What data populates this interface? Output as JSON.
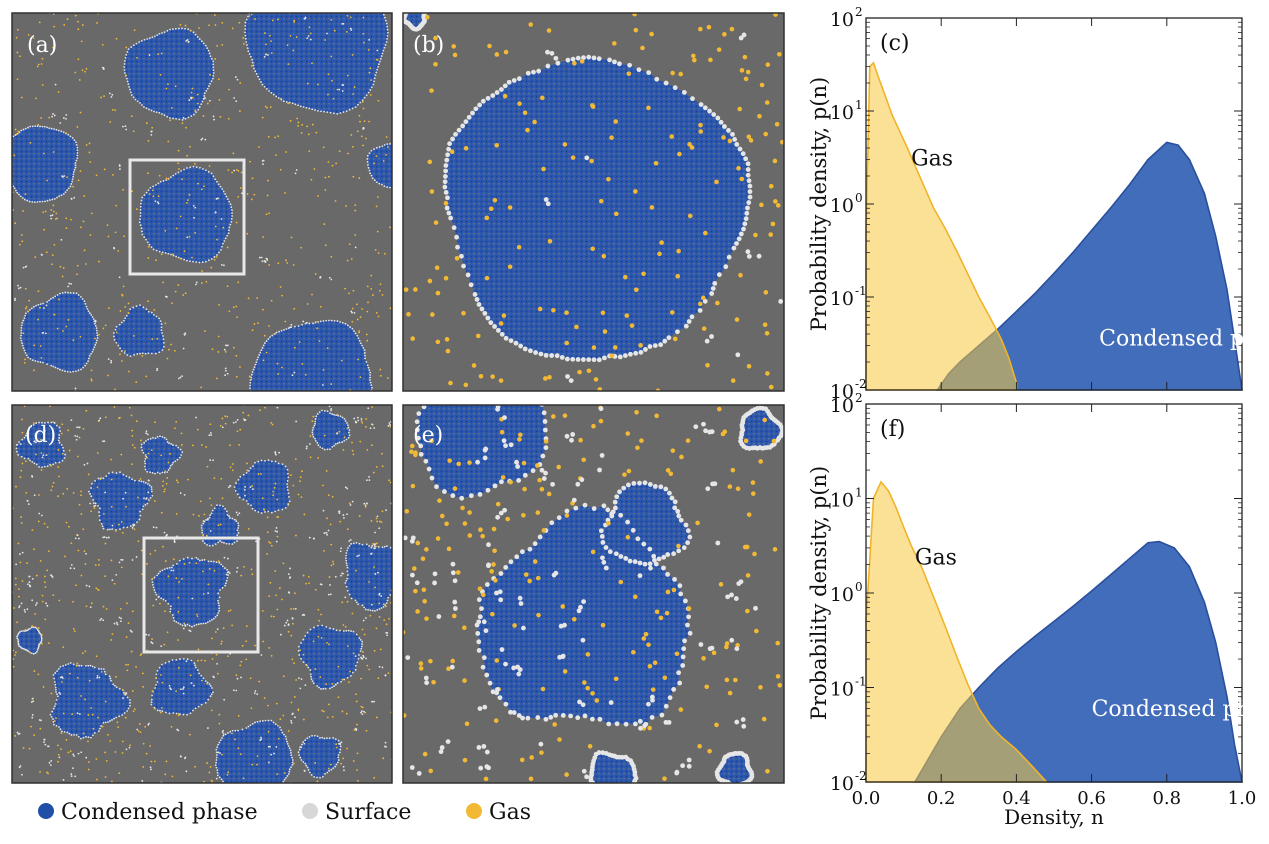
{
  "legend": {
    "items": [
      {
        "label": "Condensed phase",
        "color": "#1f4fa6"
      },
      {
        "label": "Surface",
        "color": "#d7d7d7"
      },
      {
        "label": "Gas",
        "color": "#f2b935"
      }
    ]
  },
  "snapshots": [
    {
      "label": "(a)"
    },
    {
      "label": "(b)"
    },
    {
      "label": "(d)"
    },
    {
      "label": "(e)"
    }
  ],
  "colors": {
    "background": "#696969",
    "condensed": "#2d58b0",
    "condensed_dot": "#1c3f8c",
    "surface": "#e6e6e6",
    "gas": "#f2b935",
    "frame": "#303030",
    "box": "#e8e8e8"
  },
  "chart_data": [
    {
      "type": "area",
      "panel_label": "(c)",
      "xlabel": "",
      "ylabel": "Probability density, p(n)",
      "xlim": [
        0,
        1
      ],
      "ylim": [
        0.01,
        100
      ],
      "y_scale": "log",
      "yticks": [
        "10",
        "10",
        "10",
        "10",
        "10"
      ],
      "ytick_exponents": [
        "-2",
        "-1",
        "0",
        "1",
        "2"
      ],
      "annotations": [
        {
          "text": "Gas",
          "x": 0.12,
          "y": 2.6
        },
        {
          "text": "Condensed phase",
          "x": 0.62,
          "y": 0.03
        }
      ],
      "series": [
        {
          "name": "Gas",
          "color": "#f7c93f",
          "x": [
            0.0,
            0.01,
            0.02,
            0.03,
            0.05,
            0.07,
            0.09,
            0.11,
            0.13,
            0.15,
            0.18,
            0.21,
            0.24,
            0.27,
            0.3,
            0.33,
            0.36,
            0.38,
            0.4
          ],
          "y": [
            0.5,
            30,
            33,
            25,
            15,
            9,
            6,
            4,
            2.6,
            1.7,
            0.9,
            0.55,
            0.32,
            0.18,
            0.1,
            0.06,
            0.035,
            0.022,
            0.012
          ]
        },
        {
          "name": "Condensed phase",
          "color": "#2e5db3",
          "x": [
            0.19,
            0.22,
            0.25,
            0.3,
            0.35,
            0.4,
            0.45,
            0.5,
            0.55,
            0.6,
            0.65,
            0.7,
            0.75,
            0.8,
            0.83,
            0.86,
            0.9,
            0.93,
            0.96,
            0.98,
            1.0
          ],
          "y": [
            0.01,
            0.015,
            0.02,
            0.03,
            0.045,
            0.07,
            0.11,
            0.18,
            0.3,
            0.52,
            0.9,
            1.6,
            3.0,
            4.6,
            4.3,
            3.0,
            1.3,
            0.45,
            0.12,
            0.035,
            0.01
          ]
        }
      ]
    },
    {
      "type": "area",
      "panel_label": "(f)",
      "xlabel": "Density, n",
      "ylabel": "Probability density, p(n)",
      "xlim": [
        0,
        1
      ],
      "ylim": [
        0.01,
        100
      ],
      "y_scale": "log",
      "xticks": [
        "0.0",
        "0.2",
        "0.4",
        "0.6",
        "0.8",
        "1.0"
      ],
      "yticks": [
        "10",
        "10",
        "10",
        "10",
        "10"
      ],
      "ytick_exponents": [
        "-2",
        "-1",
        "0",
        "1",
        "2"
      ],
      "annotations": [
        {
          "text": "Gas",
          "x": 0.13,
          "y": 2.0
        },
        {
          "text": "Condensed phase",
          "x": 0.6,
          "y": 0.05
        }
      ],
      "series": [
        {
          "name": "Gas",
          "color": "#f7c93f",
          "x": [
            0.0,
            0.02,
            0.04,
            0.06,
            0.08,
            0.1,
            0.12,
            0.15,
            0.18,
            0.21,
            0.24,
            0.27,
            0.3,
            0.33,
            0.36,
            0.4,
            0.44,
            0.48
          ],
          "y": [
            0.5,
            10,
            15,
            12,
            8,
            5,
            3.2,
            1.8,
            0.9,
            0.45,
            0.22,
            0.11,
            0.06,
            0.04,
            0.03,
            0.022,
            0.015,
            0.01
          ]
        },
        {
          "name": "Condensed phase",
          "color": "#2e5db3",
          "x": [
            0.13,
            0.16,
            0.2,
            0.25,
            0.3,
            0.35,
            0.4,
            0.45,
            0.5,
            0.55,
            0.6,
            0.65,
            0.7,
            0.75,
            0.78,
            0.82,
            0.86,
            0.9,
            0.93,
            0.96,
            0.98,
            1.0
          ],
          "y": [
            0.01,
            0.016,
            0.03,
            0.06,
            0.1,
            0.16,
            0.24,
            0.35,
            0.5,
            0.72,
            1.05,
            1.55,
            2.3,
            3.4,
            3.5,
            3.0,
            1.9,
            0.8,
            0.3,
            0.08,
            0.025,
            0.01
          ]
        }
      ]
    }
  ]
}
